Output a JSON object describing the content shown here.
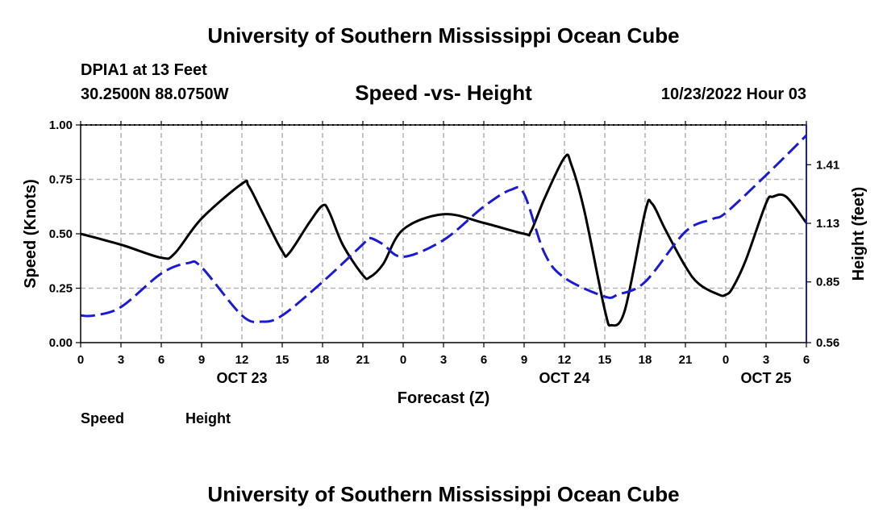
{
  "page": {
    "title": "University of Southern Mississippi Ocean Cube",
    "footer_title": "University of Southern Mississippi Ocean Cube",
    "station_name": "DPIA1 at 13 Feet",
    "station_coords": "30.2500N  88.0750W",
    "timestamp": "10/23/2022 Hour 03"
  },
  "chart_data": {
    "type": "line",
    "title": "Speed -vs- Height",
    "xlabel": "Forecast (Z)",
    "ylabel": "Speed (Knots)",
    "y2label": "Height (feet)",
    "xlim": [
      0,
      54
    ],
    "ylim": [
      0,
      1
    ],
    "y2lim": [
      0.56,
      1.6
    ],
    "grid": true,
    "x_ticks": [
      0,
      3,
      6,
      9,
      12,
      15,
      18,
      21,
      24,
      27,
      30,
      33,
      36,
      39,
      42,
      45,
      48,
      51,
      54
    ],
    "x_tick_labels": [
      "0",
      "3",
      "6",
      "9",
      "12",
      "15",
      "18",
      "21",
      "0",
      "3",
      "6",
      "9",
      "12",
      "15",
      "18",
      "21",
      "0",
      "3",
      "6"
    ],
    "date_labels": [
      {
        "x": 12,
        "label": "OCT 23"
      },
      {
        "x": 36,
        "label": "OCT 24"
      },
      {
        "x": 51,
        "label": "OCT 25"
      }
    ],
    "y_ticks": [
      0,
      0.25,
      0.5,
      0.75,
      1.0
    ],
    "y_tick_labels": [
      "0.00",
      "0.25",
      "0.50",
      "0.75",
      "1.00"
    ],
    "y2_ticks": [
      0.56,
      0.85,
      1.13,
      1.41
    ],
    "y2_tick_labels": [
      "0.56",
      "0.85",
      "1.13",
      "1.41"
    ],
    "legend": [
      {
        "name": "Speed",
        "color": "#000000",
        "style": "solid"
      },
      {
        "name": "Height",
        "color": "#1a1ad4",
        "style": "dashed"
      }
    ],
    "series": [
      {
        "name": "Speed",
        "axis": "left",
        "color": "#000000",
        "style": "solid",
        "x": [
          0,
          3,
          6,
          7,
          9,
          12,
          12.5,
          13.5,
          15,
          15.5,
          17,
          18,
          18.5,
          19.5,
          21,
          21.5,
          22.5,
          24,
          27,
          30,
          33,
          33.5,
          34.5,
          36,
          36.5,
          37.5,
          39,
          39.5,
          40.5,
          42,
          42.5,
          43.5,
          45,
          46,
          47.5,
          48,
          48.5,
          49.5,
          51,
          51.5,
          52.5,
          54
        ],
        "values": [
          0.5,
          0.45,
          0.39,
          0.41,
          0.57,
          0.73,
          0.72,
          0.6,
          0.42,
          0.41,
          0.55,
          0.63,
          0.6,
          0.45,
          0.31,
          0.3,
          0.36,
          0.52,
          0.59,
          0.55,
          0.5,
          0.51,
          0.66,
          0.85,
          0.82,
          0.6,
          0.15,
          0.08,
          0.15,
          0.6,
          0.64,
          0.52,
          0.35,
          0.27,
          0.22,
          0.22,
          0.25,
          0.38,
          0.64,
          0.67,
          0.67,
          0.55
        ]
      },
      {
        "name": "Height",
        "axis": "right",
        "color": "#1a1ad4",
        "style": "dashed",
        "x": [
          0,
          1,
          3,
          6,
          8,
          9,
          12,
          13.5,
          15,
          18,
          21,
          21.5,
          22.5,
          24,
          27,
          30,
          32,
          33,
          34.5,
          36,
          39,
          40,
          42,
          45,
          47,
          48,
          51,
          54
        ],
        "values": [
          0.69,
          0.69,
          0.73,
          0.89,
          0.94,
          0.92,
          0.69,
          0.66,
          0.69,
          0.85,
          1.03,
          1.06,
          1.03,
          0.97,
          1.05,
          1.21,
          1.29,
          1.27,
          0.99,
          0.87,
          0.78,
          0.79,
          0.85,
          1.09,
          1.15,
          1.18,
          1.36,
          1.55
        ]
      }
    ]
  }
}
